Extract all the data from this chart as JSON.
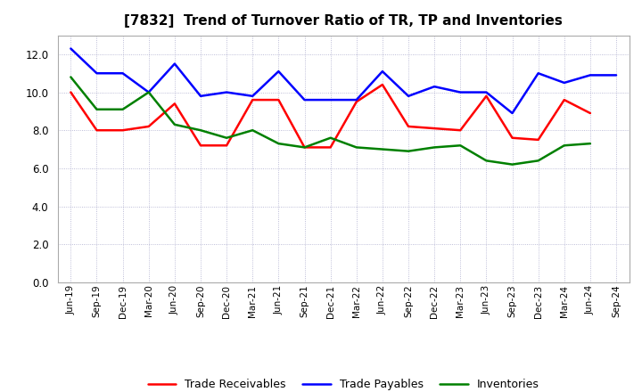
{
  "title": "[7832]  Trend of Turnover Ratio of TR, TP and Inventories",
  "labels": [
    "Jun-19",
    "Sep-19",
    "Dec-19",
    "Mar-20",
    "Jun-20",
    "Sep-20",
    "Dec-20",
    "Mar-21",
    "Jun-21",
    "Sep-21",
    "Dec-21",
    "Mar-22",
    "Jun-22",
    "Sep-22",
    "Dec-22",
    "Mar-23",
    "Jun-23",
    "Sep-23",
    "Dec-23",
    "Mar-24",
    "Jun-24",
    "Sep-24"
  ],
  "trade_receivables": [
    10.0,
    8.0,
    8.0,
    8.2,
    9.4,
    7.2,
    7.2,
    9.6,
    9.6,
    7.1,
    7.1,
    9.5,
    10.4,
    8.2,
    8.1,
    8.0,
    9.8,
    7.6,
    7.5,
    9.6,
    8.9,
    null
  ],
  "trade_payables": [
    12.3,
    11.0,
    11.0,
    10.0,
    11.5,
    9.8,
    10.0,
    9.8,
    11.1,
    9.6,
    9.6,
    9.6,
    11.1,
    9.8,
    10.3,
    10.0,
    10.0,
    8.9,
    11.0,
    10.5,
    10.9,
    10.9
  ],
  "inventories": [
    10.8,
    9.1,
    9.1,
    10.0,
    8.3,
    8.0,
    7.6,
    8.0,
    7.3,
    7.1,
    7.6,
    7.1,
    7.0,
    6.9,
    7.1,
    7.2,
    6.4,
    6.2,
    6.4,
    7.2,
    7.3,
    null
  ],
  "tr_color": "#ff0000",
  "tp_color": "#0000ff",
  "inv_color": "#008000",
  "ylim": [
    0,
    13
  ],
  "yticks": [
    0.0,
    2.0,
    4.0,
    6.0,
    8.0,
    10.0,
    12.0
  ],
  "legend_labels": [
    "Trade Receivables",
    "Trade Payables",
    "Inventories"
  ],
  "bg_color": "#ffffff",
  "plot_bg_color": "#ffffff",
  "title_fontsize": 11,
  "linewidth": 1.8
}
